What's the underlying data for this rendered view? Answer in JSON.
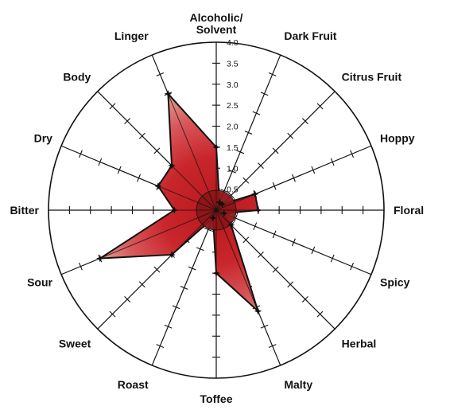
{
  "chart_data": {
    "type": "radar",
    "title": "",
    "categories": [
      "Alcoholic/\nSolvent",
      "Dark Fruit",
      "Citrus Fruit",
      "Hoppy",
      "Floral",
      "Spicy",
      "Herbal",
      "Malty",
      "Toffee",
      "Roast",
      "Sweet",
      "Sour",
      "Bitter",
      "Dry",
      "Body",
      "Linger"
    ],
    "rlim": [
      0,
      4.0
    ],
    "ticks": [
      "0.5",
      "1.0",
      "1.5",
      "2.0",
      "2.5",
      "3.0",
      "3.5",
      "4.0"
    ],
    "tick_values": [
      0.5,
      1.0,
      1.5,
      2.0,
      2.5,
      3.0,
      3.5,
      4.0
    ],
    "series": [
      {
        "values": [
          1.5,
          0.2,
          0.2,
          1.0,
          1.0,
          0.2,
          0.5,
          2.6,
          1.5,
          0.2,
          1.5,
          3.0,
          1.0,
          1.5,
          1.5,
          3.0
        ]
      }
    ],
    "colors": {
      "fill_outer": "#e9d7bd",
      "fill_mid": "#d7565a",
      "fill_inner": "#b7181e",
      "outline": "#111111",
      "grid": "#111111",
      "center_disc": "#8d1518"
    }
  }
}
